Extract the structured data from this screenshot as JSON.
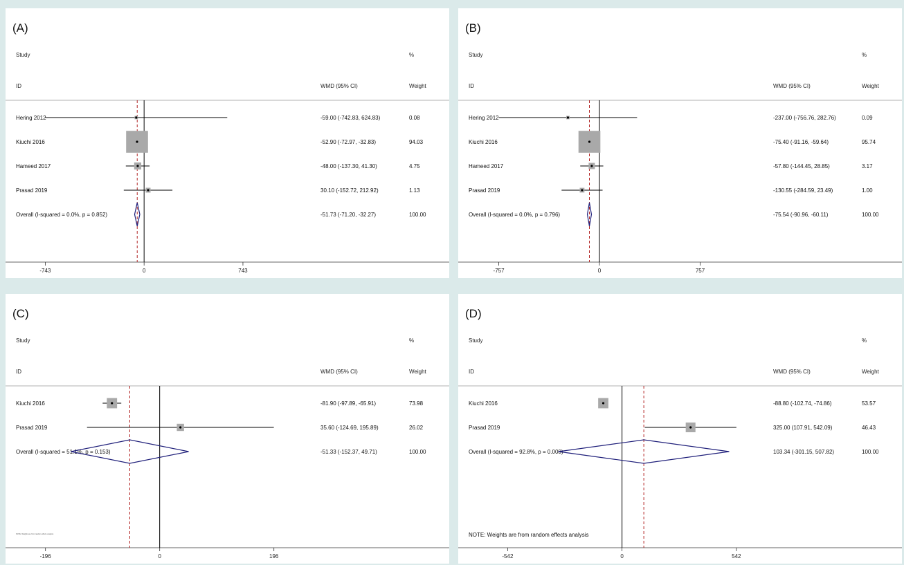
{
  "chart_data": [
    {
      "type": "forest",
      "panel_label": "(A)",
      "headers": {
        "study": "Study",
        "id": "ID",
        "effect": "WMD (95% CI)",
        "pct": "%",
        "weight": "Weight"
      },
      "xlim": [
        -1000,
        1300
      ],
      "ticks": [
        -743,
        0,
        743
      ],
      "tick_labels": [
        "-743",
        "0",
        "743"
      ],
      "studies": [
        {
          "name": "Hering 2012",
          "est": -59.0,
          "lo": -742.83,
          "hi": 624.83,
          "weight": 0.08,
          "ci_text": "-59.00 (-742.83, 624.83)",
          "weight_text": "0.08"
        },
        {
          "name": "Kiuchi 2016",
          "est": -52.9,
          "lo": -72.97,
          "hi": -32.83,
          "weight": 94.03,
          "ci_text": "-52.90 (-72.97, -32.83)",
          "weight_text": "94.03"
        },
        {
          "name": "Hameed 2017",
          "est": -48.0,
          "lo": -137.3,
          "hi": 41.3,
          "weight": 4.75,
          "ci_text": "-48.00 (-137.30, 41.30)",
          "weight_text": "4.75"
        },
        {
          "name": "Prasad 2019",
          "est": 30.1,
          "lo": -152.72,
          "hi": 212.92,
          "weight": 1.13,
          "ci_text": "30.10 (-152.72, 212.92)",
          "weight_text": "1.13"
        }
      ],
      "overall": {
        "label": "Overall  (I-squared = 0.0%, p = 0.852)",
        "est": -51.73,
        "lo": -71.2,
        "hi": -32.27,
        "ci_text": "-51.73 (-71.20, -32.27)",
        "weight_text": "100.00"
      },
      "note": ""
    },
    {
      "type": "forest",
      "panel_label": "(B)",
      "headers": {
        "study": "Study",
        "id": "ID",
        "effect": "WMD (95% CI)",
        "pct": "%",
        "weight": "Weight"
      },
      "xlim": [
        -1020,
        1280
      ],
      "ticks": [
        -757,
        0,
        757
      ],
      "tick_labels": [
        "-757",
        "0",
        "757"
      ],
      "studies": [
        {
          "name": "Hering 2012",
          "est": -237.0,
          "lo": -756.76,
          "hi": 282.76,
          "weight": 0.09,
          "ci_text": "-237.00 (-756.76, 282.76)",
          "weight_text": "0.09"
        },
        {
          "name": "Kiuchi 2016",
          "est": -75.4,
          "lo": -91.16,
          "hi": -59.64,
          "weight": 95.74,
          "ci_text": "-75.40 (-91.16, -59.64)",
          "weight_text": "95.74"
        },
        {
          "name": "Hameed 2017",
          "est": -57.8,
          "lo": -144.45,
          "hi": 28.85,
          "weight": 3.17,
          "ci_text": "-57.80 (-144.45, 28.85)",
          "weight_text": "3.17"
        },
        {
          "name": "Prasad 2019",
          "est": -130.55,
          "lo": -284.59,
          "hi": 23.49,
          "weight": 1.0,
          "ci_text": "-130.55 (-284.59, 23.49)",
          "weight_text": "1.00"
        }
      ],
      "overall": {
        "label": "Overall  (I-squared = 0.0%, p = 0.796)",
        "est": -75.54,
        "lo": -90.96,
        "hi": -60.11,
        "ci_text": "-75.54 (-90.96, -60.11)",
        "weight_text": "100.00"
      },
      "note": ""
    },
    {
      "type": "forest",
      "panel_label": "(C)",
      "headers": {
        "study": "Study",
        "id": "ID",
        "effect": "WMD (95% CI)",
        "pct": "%",
        "weight": "Weight"
      },
      "xlim": [
        -255,
        270
      ],
      "ticks": [
        -196,
        0,
        196
      ],
      "tick_labels": [
        "-196",
        "0",
        "196"
      ],
      "studies": [
        {
          "name": "Kiuchi 2016",
          "est": -81.9,
          "lo": -97.89,
          "hi": -65.91,
          "weight": 73.98,
          "ci_text": "-81.90 (-97.89, -65.91)",
          "weight_text": "73.98"
        },
        {
          "name": "Prasad 2019",
          "est": 35.6,
          "lo": -124.69,
          "hi": 195.89,
          "weight": 26.02,
          "ci_text": "35.60 (-124.69, 195.89)",
          "weight_text": "26.02"
        }
      ],
      "overall": {
        "label": "Overall  (I-squared = 51.1%, p = 0.153)",
        "est": -51.33,
        "lo": -152.37,
        "hi": 49.71,
        "ci_text": "-51.33 (-152.37, 49.71)",
        "weight_text": "100.00"
      },
      "note": "NOTE: Weights are from random effects analysis",
      "note_tiny": true
    },
    {
      "type": "forest",
      "panel_label": "(D)",
      "headers": {
        "study": "Study",
        "id": "ID",
        "effect": "WMD (95% CI)",
        "pct": "%",
        "weight": "Weight"
      },
      "xlim": [
        -750,
        700
      ],
      "ticks": [
        -542,
        0,
        542
      ],
      "tick_labels": [
        "-542",
        "0",
        "542"
      ],
      "studies": [
        {
          "name": "Kiuchi 2016",
          "est": -88.8,
          "lo": -102.74,
          "hi": -74.86,
          "weight": 53.57,
          "ci_text": "-88.80 (-102.74, -74.86)",
          "weight_text": "53.57"
        },
        {
          "name": "Prasad 2019",
          "est": 325.0,
          "lo": 107.91,
          "hi": 542.09,
          "weight": 46.43,
          "ci_text": "325.00 (107.91, 542.09)",
          "weight_text": "46.43"
        }
      ],
      "overall": {
        "label": "Overall  (I-squared = 92.8%, p = 0.000)",
        "est": 103.34,
        "lo": -301.15,
        "hi": 507.82,
        "ci_text": "103.34 (-301.15, 507.82)",
        "weight_text": "100.00"
      },
      "note": "NOTE: Weights are from random effects analysis",
      "note_tiny": false
    }
  ],
  "colors": {
    "background": "#dbeaea",
    "ci_line": "#000000",
    "weight_box": "#a9a9a9",
    "diamond": "#1f1f7a",
    "overall_line": "#b22222"
  }
}
